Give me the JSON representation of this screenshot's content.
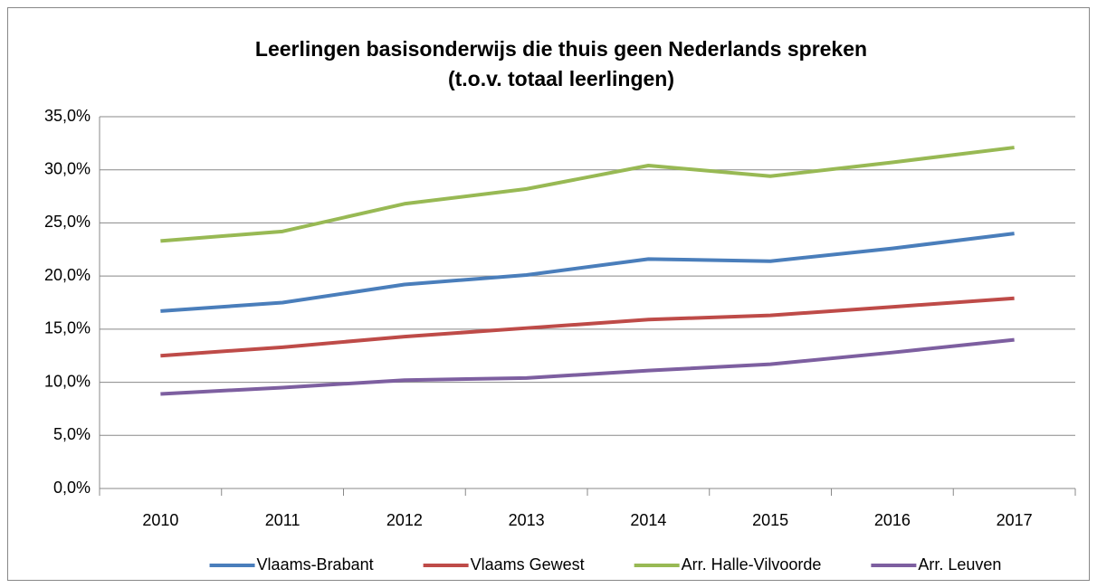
{
  "chart_data": {
    "type": "line",
    "title": "Leerlingen basisonderwijs die thuis geen Nederlands spreken",
    "subtitle": "(t.o.v. totaal leerlingen)",
    "categories": [
      "2010",
      "2011",
      "2012",
      "2013",
      "2014",
      "2015",
      "2016",
      "2017"
    ],
    "series": [
      {
        "name": "Vlaams-Brabant",
        "color": "#4a7ebb",
        "values": [
          16.7,
          17.5,
          19.2,
          20.1,
          21.6,
          21.4,
          22.6,
          24.0
        ]
      },
      {
        "name": "Vlaams Gewest",
        "color": "#be4b48",
        "values": [
          12.5,
          13.3,
          14.3,
          15.1,
          15.9,
          16.3,
          17.1,
          17.9
        ]
      },
      {
        "name": "Arr. Halle-Vilvoorde",
        "color": "#98b954",
        "values": [
          23.3,
          24.2,
          26.8,
          28.2,
          30.4,
          29.4,
          30.7,
          32.1
        ]
      },
      {
        "name": "Arr. Leuven",
        "color": "#7d5fa0",
        "values": [
          8.9,
          9.5,
          10.2,
          10.4,
          11.1,
          11.7,
          12.8,
          14.0
        ]
      }
    ],
    "ylim": [
      0,
      35
    ],
    "yticks": [
      {
        "value": 0,
        "label": "0,0%"
      },
      {
        "value": 5,
        "label": "5,0%"
      },
      {
        "value": 10,
        "label": "10,0%"
      },
      {
        "value": 15,
        "label": "15,0%"
      },
      {
        "value": 20,
        "label": "20,0%"
      },
      {
        "value": 25,
        "label": "25,0%"
      },
      {
        "value": 30,
        "label": "30,0%"
      },
      {
        "value": 35,
        "label": "35,0%"
      }
    ],
    "grid": true,
    "legend": "bottom"
  }
}
